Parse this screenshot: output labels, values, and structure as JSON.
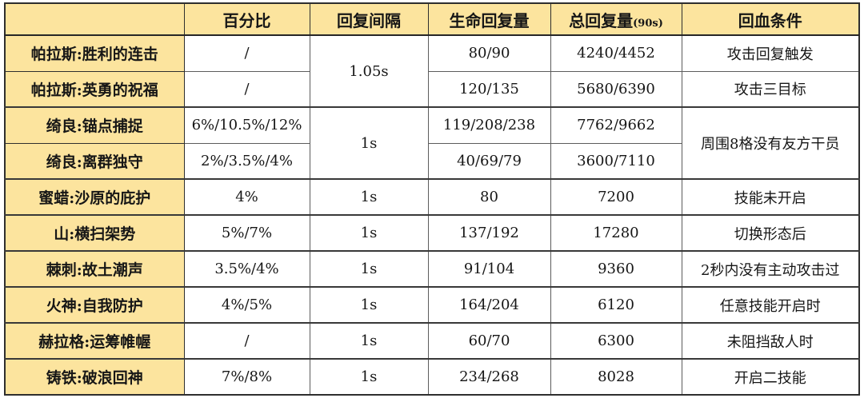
{
  "colors": {
    "header_bg": "#fce49e",
    "name_col_bg": "#fce49e",
    "cell_bg": "#ffffff",
    "grid_dark": "#2e2e2e",
    "grid_light": "#5c5c5c",
    "text": "#161616"
  },
  "table": {
    "headers": {
      "name": "",
      "percent": "百分比",
      "interval": "回复间隔",
      "hp": "生命回复量",
      "total": "总回复量",
      "total_note": "(90s)",
      "condition": "回血条件"
    },
    "rows": [
      {
        "name": "帕拉斯:胜利的连击",
        "percent": "/",
        "interval": "1.05s",
        "hp": "80/90",
        "total": "4240/4452",
        "condition": "攻击回复触发"
      },
      {
        "name": "帕拉斯:英勇的祝福",
        "percent": "/",
        "hp": "120/135",
        "total": "5680/6390",
        "condition": "攻击三目标"
      },
      {
        "name": "绮良:锚点捕捉",
        "percent": "6%/10.5%/12%",
        "interval": "1s",
        "hp": "119/208/238",
        "total": "7762/9662",
        "condition": "周围8格没有友方干员"
      },
      {
        "name": "绮良:离群独守",
        "percent": "2%/3.5%/4%",
        "hp": "40/69/79",
        "total": "3600/7110"
      },
      {
        "name": "蜜蜡:沙原的庇护",
        "percent": "4%",
        "interval": "1s",
        "hp": "80",
        "total": "7200",
        "condition": "技能未开启"
      },
      {
        "name": "山:横扫架势",
        "percent": "5%/7%",
        "interval": "1s",
        "hp": "137/192",
        "total": "17280",
        "condition": "切换形态后"
      },
      {
        "name": "棘刺:故土潮声",
        "percent": "3.5%/4%",
        "interval": "1s",
        "hp": "91/104",
        "total": "9360",
        "condition": "2秒内没有主动攻击过"
      },
      {
        "name": "火神:自我防护",
        "percent": "4%/5%",
        "interval": "1s",
        "hp": "164/204",
        "total": "6120",
        "condition": "任意技能开启时"
      },
      {
        "name": "赫拉格:运筹帷幄",
        "percent": "/",
        "interval": "1s",
        "hp": "60/70",
        "total": "6300",
        "condition": "未阻挡敌人时"
      },
      {
        "name": "铸铁:破浪回神",
        "percent": "7%/8%",
        "interval": "1s",
        "hp": "234/268",
        "total": "8028",
        "condition": "开启二技能"
      }
    ]
  }
}
